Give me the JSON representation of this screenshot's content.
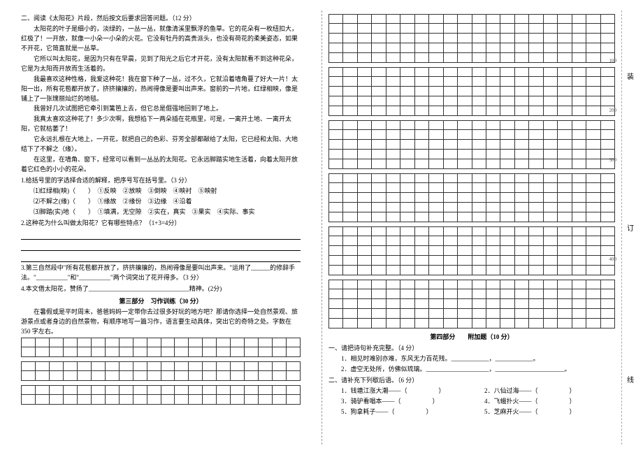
{
  "left": {
    "heading": "二、阅读《太阳花》片段，然后按文后要求回答问题。（12 分）",
    "para1": "太阳花的叶子是细小的，淡绿的，一丛一丛，就像清溪里飘浮的鱼草。它的花朵有一枚纽扣大，红极了！一开放，就像一小朵一小朵的火花。它没有牡丹的高贵派头，也没有荷花的柔美姿态，如果不开花，它简直就是一丛草。",
    "para2": "它所以叫太阳花，是因为只有在早晨，见到了阳光之后它才开花，没有太阳就看不到这种花朵，它是为太阳而开放而生活着的。",
    "para3": "我最喜欢这种性格，我爱这种花！我在窗下种了一丛，过不久，它就沿着墙角蔓了好大一片！太阳一出，所有花苞都开放了，挤挤攘攘的，热闹得像是要叫出声来。窗前的一片地，红绿相映，像是铺上了一张瑰丽灿烂的地毯。",
    "para4": "我曾好几次试图把它牵引到篱笆上去，但它总是倔强地回到了地上。",
    "para5": "我真太喜欢这种花了！多少次啊，我想掐下一两朵插在花瓶里，可是，一离开土地、一离开太阳，它就枯萎了！",
    "para6": "它永远扎根在大地上，一开花，就把自己的色彩、芬芳全部都献给了太阳，它已经和太阳、大地结下了不解之（缘）。",
    "para7": "在这里，在墙角、窗下，经常可以看到一丛丛的太阳花。它永远脚踏实地生活着，向着太阳开放着它红色的小小的花朵。",
    "q1": "1.给括号里的字选择合适的解释，把序号写在括号里。（3 分）",
    "q1a": "⑴红绿相(映)（　　）　①反映　②放映　③倒映　④映衬　⑤映射",
    "q1b": "⑵不解之(缘)（　　）　①缘故　②缘份　③边缘　④沿着",
    "q1c": "⑶脚踏(实)地（　　）　①填满，无空隙　②实在，真实　③果实　④实际、事实",
    "q2": "2.这种花为什么叫做太阳花？它有哪些特点？（1+3=4分）",
    "q3": "3.第三自然段中\"所有花苞都开放了，挤挤攘攘的，热闹得像是要叫出声来。\"运用了______的修辞手法。\"__________\"和\"__________\"两个词突出了花开得多。（3 分）",
    "q4": "4.本文借太阳花，赞扬了________________________________精神。(2分)",
    "section3_title": "第三部分　习作训练（30 分）",
    "essay_prompt": "在暑假或是平时周末，爸爸妈妈一定带你去过很多好玩的地方吧？那请你选择一处自然景观、旅游景点或者身边的自然景物，有顺序地写一篇习作，语言要生动具体，突出它的奇特之处。字数在 350 字左右。",
    "grid": {
      "cols": 20,
      "left_blocks": 3,
      "rows_per_block": 2
    }
  },
  "right": {
    "grid": {
      "cols": 20,
      "blocks": 6,
      "rows_per_block": 5,
      "marks": {
        "100": 1,
        "200": 2,
        "300": 3,
        "400": 5
      }
    },
    "section4_title": "第四部分　　附加题（10 分）",
    "addq1": "一、请把诗句补充完整。（4 分）",
    "addq1a": "1．相见时难别亦难，东风无力百花残。____________，____________。",
    "addq1b": "2．虚空无处所，仿佛似琉璃。____________________，______________________。",
    "addq2": "二、请补充下列歇后语。（6 分）",
    "addq2a": "1．钱塘江涨大潮——（　　　　　）",
    "addq2b": "2．八仙过海——（　　　　　）",
    "addq2c": "3．骑驴看唱本——（　　　　　）",
    "addq2d": "4．飞蛾扑火——（　　　　　）",
    "addq2e": "5．狗拿耗子——（　　　　　）",
    "addq2f": "5．芝麻开火——（　　　　　）"
  },
  "side": {
    "a": "装",
    "b": "订",
    "c": "线"
  }
}
